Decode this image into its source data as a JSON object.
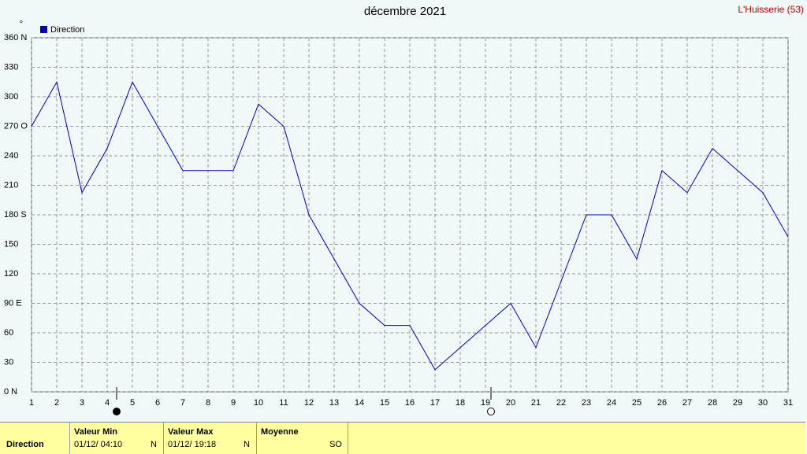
{
  "chart_data": {
    "type": "line",
    "title": "décembre 2021",
    "annotation": "L'Huisserie (53)",
    "y_unit": "°",
    "x": [
      1,
      2,
      3,
      4,
      5,
      6,
      7,
      8,
      9,
      10,
      11,
      12,
      13,
      14,
      15,
      16,
      17,
      18,
      19,
      20,
      21,
      22,
      23,
      24,
      25,
      26,
      27,
      28,
      29,
      30,
      31
    ],
    "series": [
      {
        "name": "Direction",
        "color": "#0000c0",
        "values": [
          270,
          315,
          202.5,
          247.5,
          315,
          270,
          225,
          225,
          225,
          292.5,
          270,
          180,
          135,
          90,
          67.5,
          67.5,
          22.5,
          45,
          67.5,
          90,
          45,
          112.5,
          180,
          180,
          135,
          225,
          202.5,
          247.5,
          225,
          202.5,
          157.5
        ]
      }
    ],
    "xlim": [
      1,
      31
    ],
    "xticks": [
      1,
      2,
      3,
      4,
      5,
      6,
      7,
      8,
      9,
      10,
      11,
      12,
      13,
      14,
      15,
      16,
      17,
      18,
      19,
      20,
      21,
      22,
      23,
      24,
      25,
      26,
      27,
      28,
      29,
      30,
      31
    ],
    "ylim": [
      0,
      360
    ],
    "yticks": [
      {
        "value": 0,
        "label": "0   N"
      },
      30,
      60,
      {
        "value": 90,
        "label": "90  E"
      },
      120,
      150,
      {
        "value": 180,
        "label": "180 S"
      },
      210,
      240,
      {
        "value": 270,
        "label": "270 O"
      },
      300,
      330,
      {
        "value": 360,
        "label": "360 N"
      }
    ],
    "grid": true
  },
  "footer": {
    "row_label": "Direction",
    "columns": [
      {
        "header": "Valeur Min",
        "date": "01/12/ 04:10",
        "direction": "N"
      },
      {
        "header": "Valeur Max",
        "date": "01/12/ 19:18",
        "direction": "N"
      },
      {
        "header": "Moyenne",
        "direction": "SO"
      }
    ]
  }
}
